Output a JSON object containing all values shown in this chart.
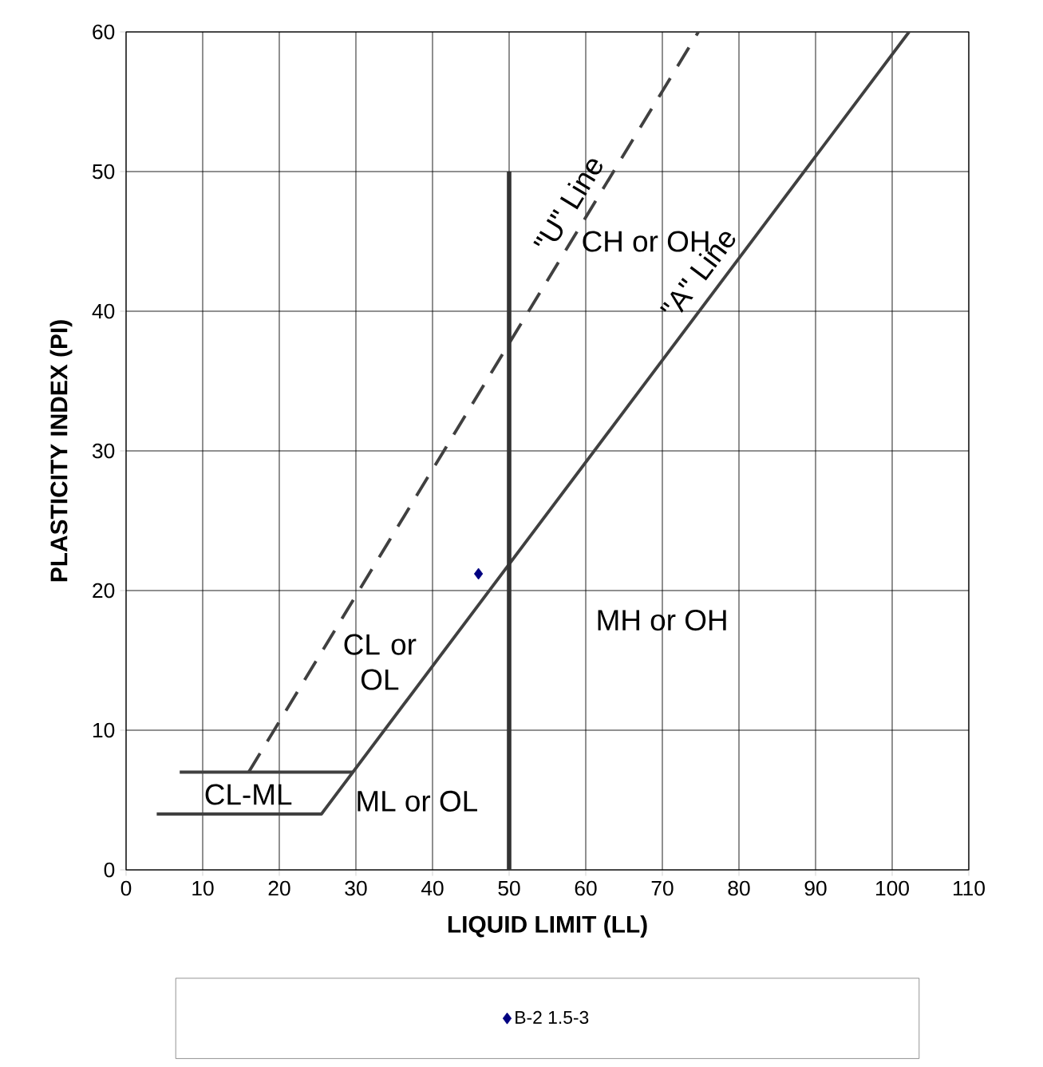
{
  "chart_data": {
    "type": "line",
    "xlabel": "LIQUID LIMIT (LL)",
    "ylabel": "PLASTICITY INDEX (PI)",
    "xlim": [
      0,
      110
    ],
    "ylim": [
      0,
      60
    ],
    "xticks": [
      0,
      10,
      20,
      30,
      40,
      50,
      60,
      70,
      80,
      90,
      100,
      110
    ],
    "yticks": [
      0,
      10,
      20,
      30,
      40,
      50,
      60
    ],
    "grid": true,
    "legend": "bottom",
    "series": [
      {
        "color": "#404040",
        "line_style": "solid",
        "x": [
          4,
          25.5,
          102.2
        ],
        "values": [
          4,
          4,
          60
        ]
      },
      {
        "color": "#404040",
        "line_style": "dashed",
        "x": [
          16,
          74.7
        ],
        "values": [
          7,
          60
        ]
      },
      {
        "color": "#404040",
        "line_style": "solid",
        "x": [
          7,
          29.6
        ],
        "values": [
          7,
          7
        ]
      },
      {
        "color": "#333333",
        "line_style": "solid",
        "x": [
          50,
          50
        ],
        "values": [
          0,
          50
        ]
      },
      {
        "type": "scatter",
        "name": "B-2 1.5-3",
        "color": "#000080",
        "marker": "diamond",
        "x": [
          46
        ],
        "values": [
          21.2
        ]
      }
    ],
    "annotations": [
      "\"U\" Line",
      "CH or OH",
      "\"A\" Line",
      "CL or OL",
      "MH or OH",
      "CL-ML",
      "ML or OL"
    ]
  }
}
